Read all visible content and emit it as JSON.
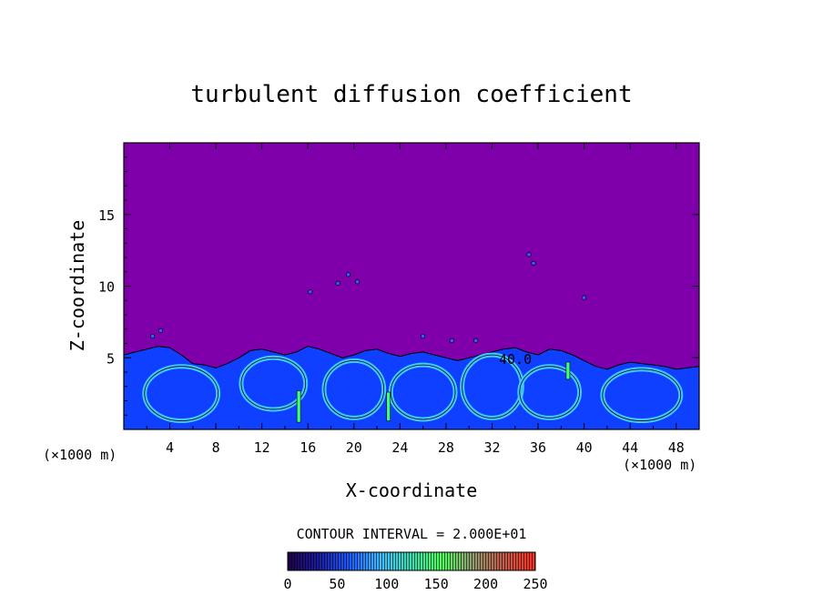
{
  "chart_data": {
    "type": "heatmap",
    "title": "turbulent diffusion coefficient",
    "xlabel": "X-coordinate",
    "ylabel": "Z-coordinate",
    "x_unit_left": "(×1000 m)",
    "x_unit_right": "(×1000 m)",
    "xlim": [
      0,
      50
    ],
    "ylim": [
      0,
      20
    ],
    "x_ticks": [
      4,
      8,
      12,
      16,
      20,
      24,
      28,
      32,
      36,
      40,
      44,
      48
    ],
    "y_ticks": [
      5,
      10,
      15
    ],
    "contour_interval_text": "CONTOUR INTERVAL = 2.000E+01",
    "contour_interval": 20,
    "contour_labels": [
      "40.0"
    ],
    "colorbar": {
      "min": 0,
      "max": 250,
      "ticks": [
        0,
        50,
        100,
        150,
        200,
        250
      ]
    },
    "background_color": "#7f00aa",
    "boundary_layer_top_approx": 5.5,
    "colors": {
      "low": "#7f00aa",
      "mid_blue": "#1040ff",
      "cyan": "#40c8ff",
      "green": "#40ff80"
    }
  }
}
